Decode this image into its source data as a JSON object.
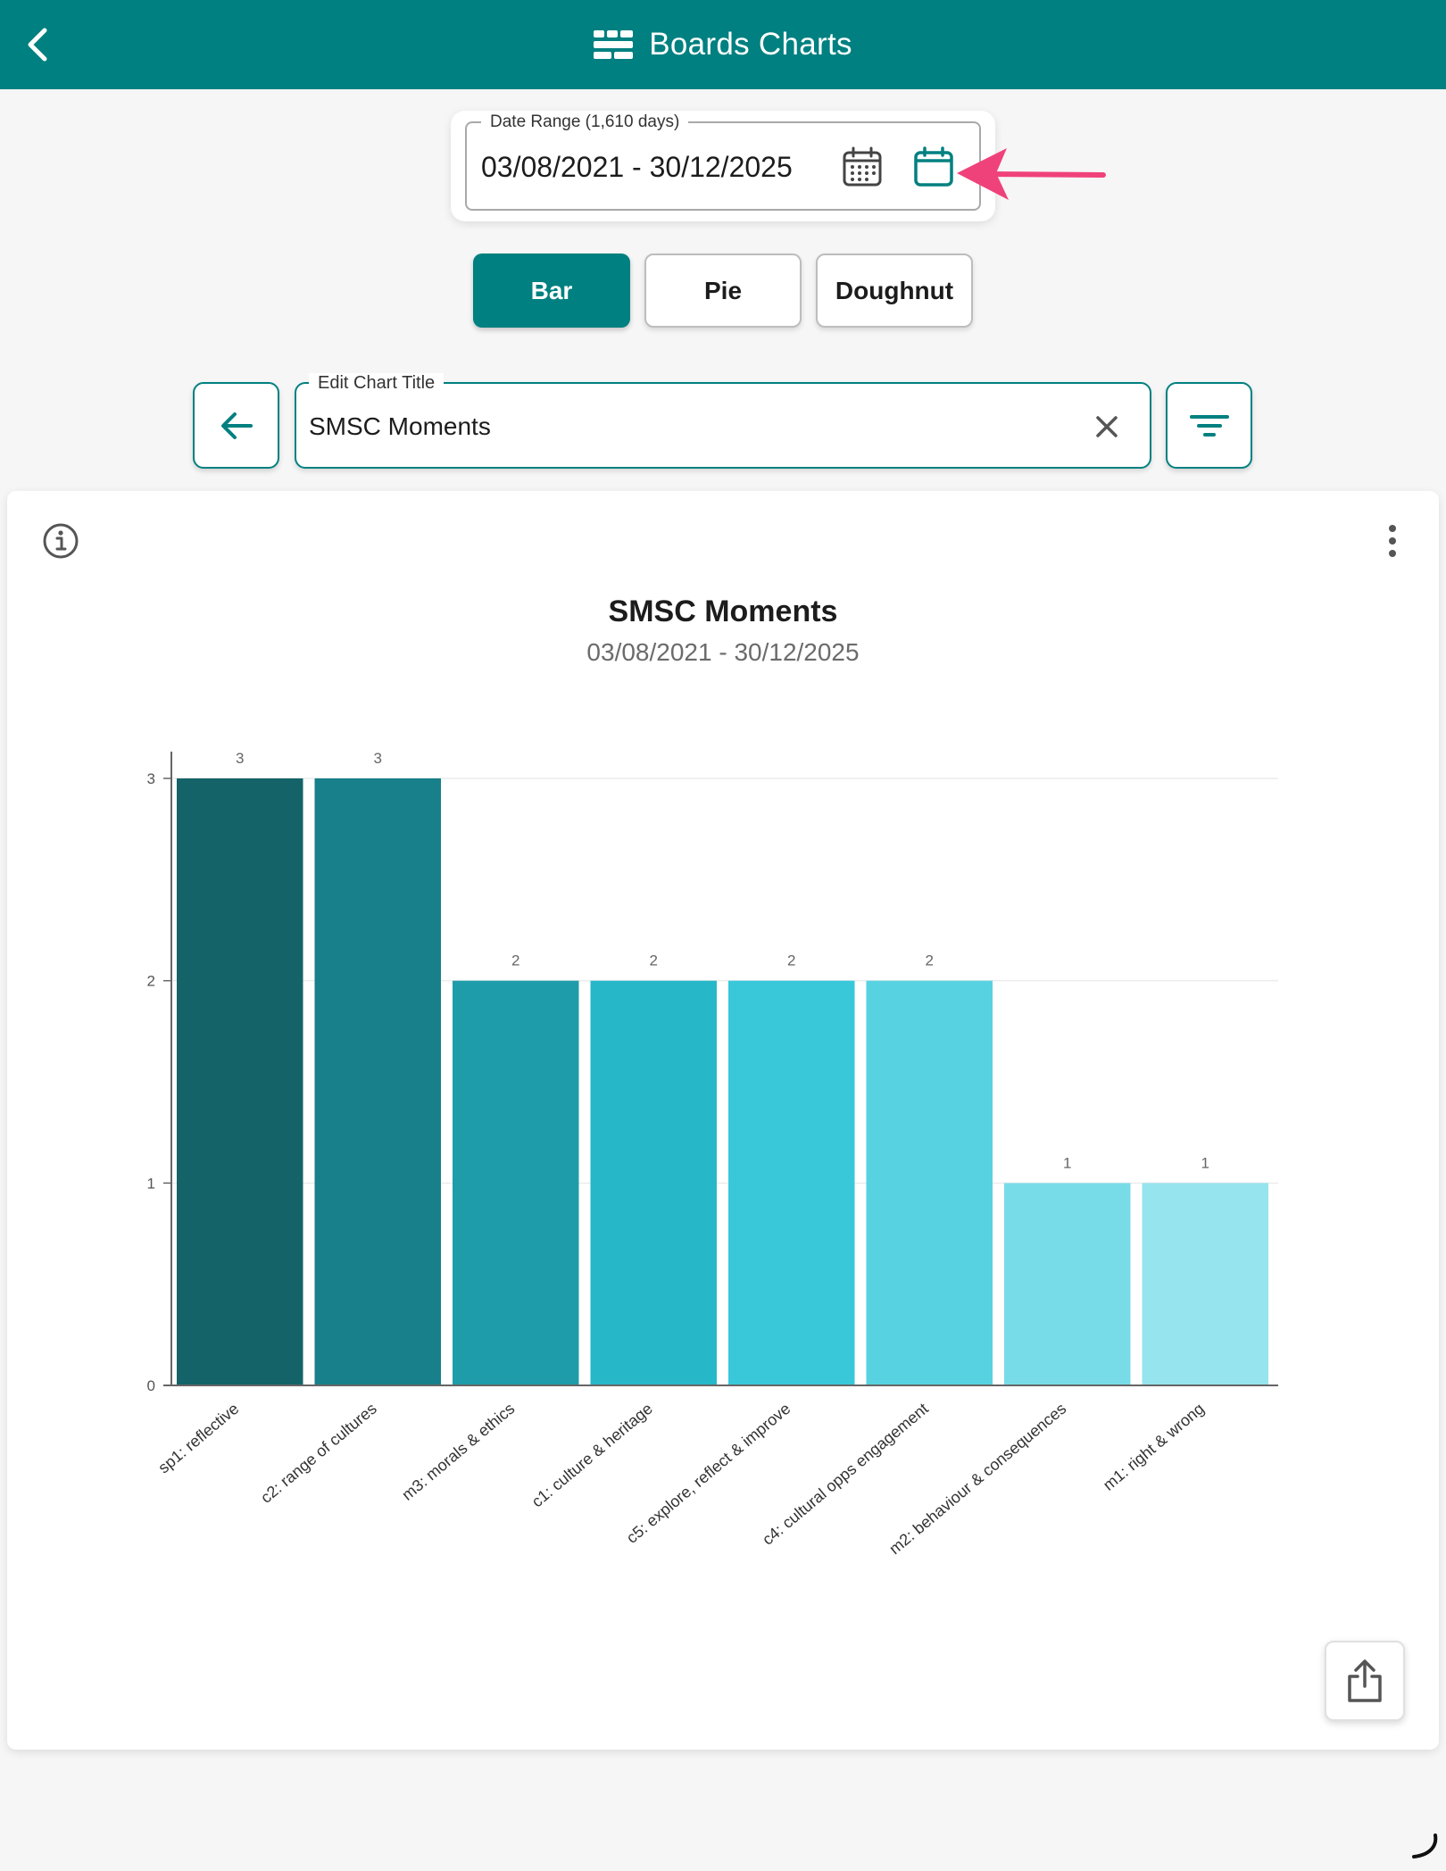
{
  "header": {
    "title": "Boards Charts",
    "back_icon": "chevron-left-icon",
    "title_icon": "boards-icon"
  },
  "date_range": {
    "label": "Date Range (1,610 days)",
    "value": "03/08/2021 - 30/12/2025",
    "icons": [
      "calendar-grid-icon",
      "calendar-icon"
    ]
  },
  "chart_types": {
    "bar": "Bar",
    "pie": "Pie",
    "doughnut": "Doughnut",
    "selected": "Bar"
  },
  "title_editor": {
    "label": "Edit Chart Title",
    "value": "SMSC Moments"
  },
  "colors": {
    "primary": "#008080",
    "annotation_arrow": "#f0427a"
  },
  "chart_data": {
    "type": "bar",
    "title": "SMSC Moments",
    "subtitle": "03/08/2021 - 30/12/2025",
    "categories": [
      "sp1: reflective",
      "c2: range of cultures",
      "m3: morals & ethics",
      "c1: culture & heritage",
      "c5: explore, reflect & improve",
      "c4: cultural opps engagement",
      "m2: behaviour & consequences",
      "m1: right & wrong"
    ],
    "values": [
      3,
      3,
      2,
      2,
      2,
      2,
      1,
      1
    ],
    "bar_colors": [
      "#136369",
      "#17808a",
      "#1f9caa",
      "#26b7c9",
      "#38c8da",
      "#57d2e1",
      "#78dce8",
      "#96e4ed"
    ],
    "ylim": [
      0,
      3
    ],
    "yticks": [
      0,
      1,
      2,
      3
    ],
    "xlabel": "",
    "ylabel": "",
    "grid": true,
    "legend": "none",
    "data_labels": true
  }
}
